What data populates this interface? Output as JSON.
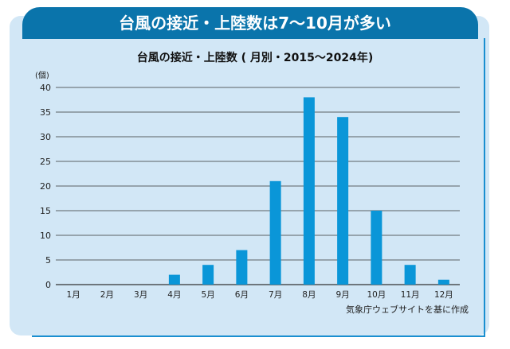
{
  "header": {
    "title": "台風の接近・上陸数は7～10月が多い"
  },
  "colors": {
    "header": "#0a74ab",
    "panel": "#d2e7f6",
    "bar": "#0a96d8"
  },
  "chart_data": {
    "type": "bar",
    "title": "台風の接近・上陸数 ( 月別・2015～2024年)",
    "ylabel": "(個)",
    "xlabel": "",
    "categories": [
      "1月",
      "2月",
      "3月",
      "4月",
      "5月",
      "6月",
      "7月",
      "8月",
      "9月",
      "10月",
      "11月",
      "12月"
    ],
    "values": [
      0,
      0,
      0,
      2,
      4,
      7,
      21,
      38,
      34,
      15,
      4,
      1
    ],
    "ylim": [
      0,
      40
    ],
    "yticks": [
      "0",
      "5",
      "10",
      "15",
      "20",
      "25",
      "30",
      "35",
      "40"
    ],
    "grid": true,
    "source": "気象庁ウェブサイトを基に作成"
  }
}
